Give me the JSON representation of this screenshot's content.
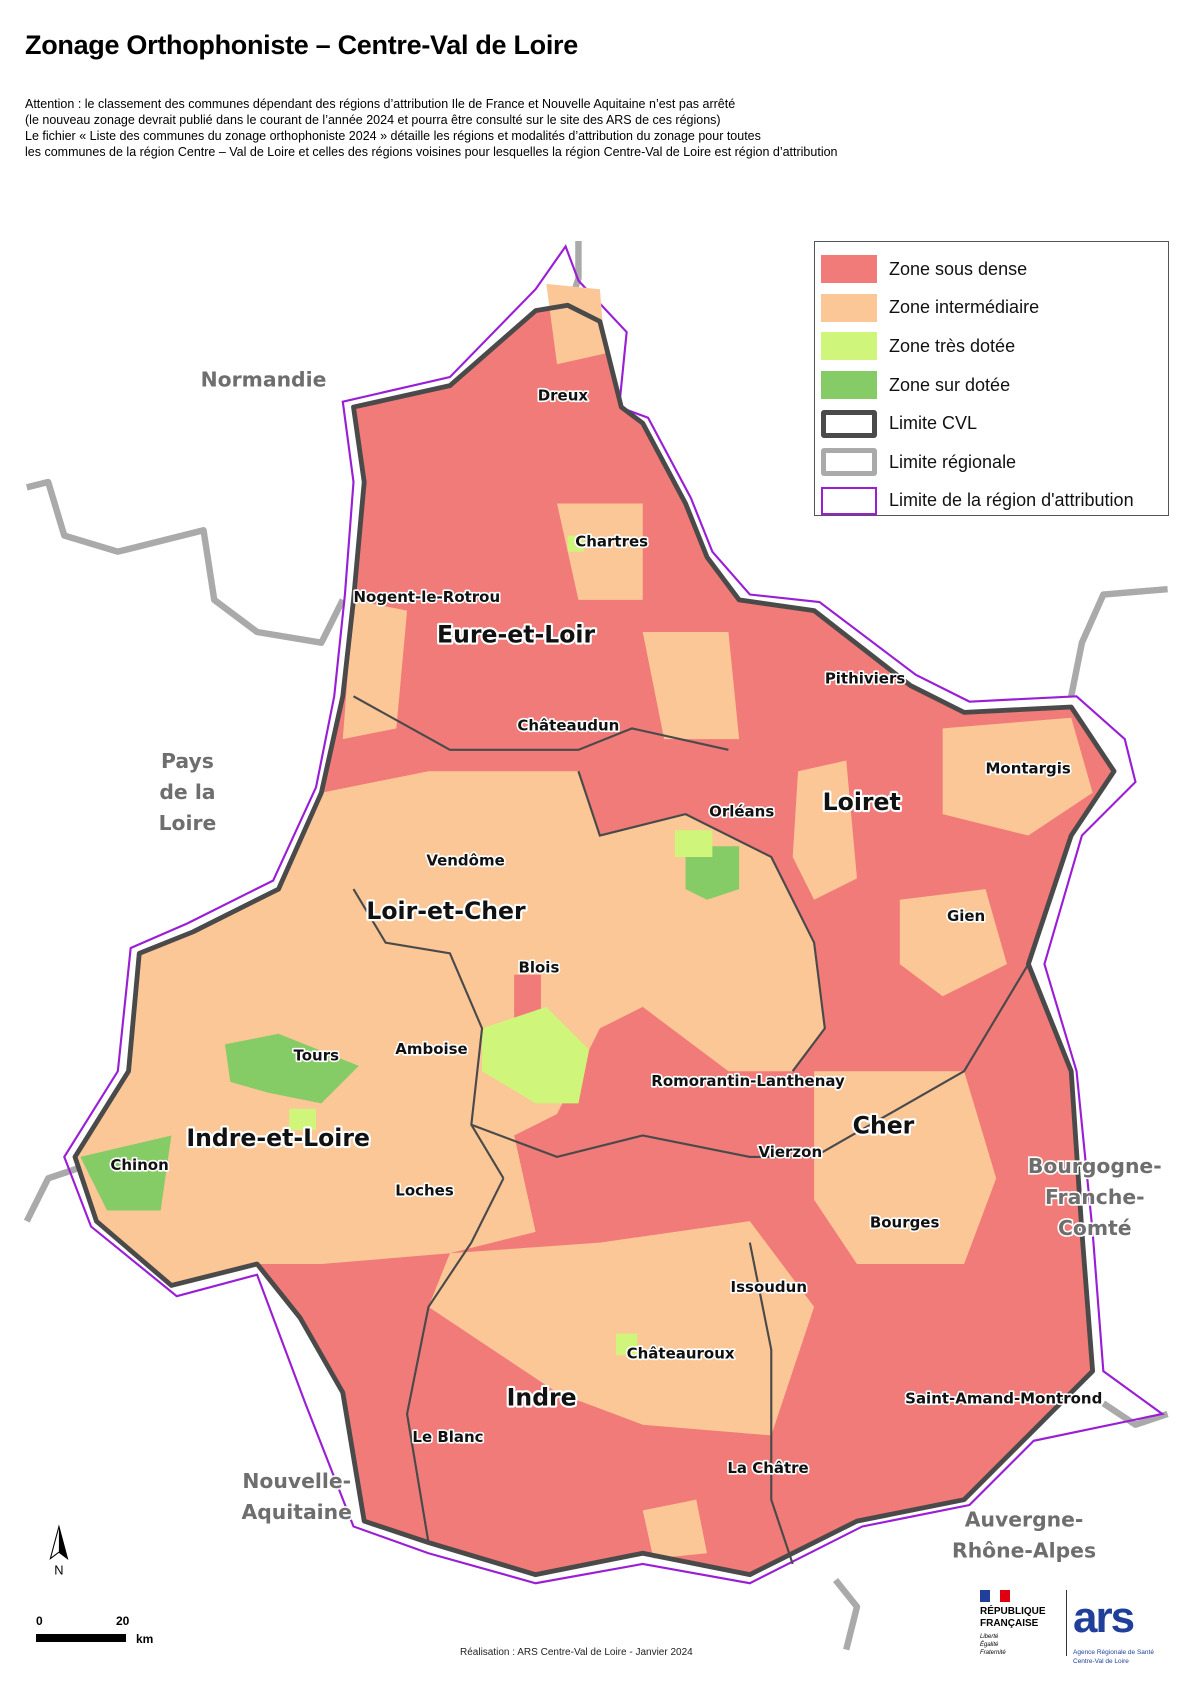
{
  "title": "Zonage Orthophoniste – Centre-Val de Loire",
  "notes": [
    "Attention : le classement des communes dépendant des régions d’attribution Ile de France et Nouvelle Aquitaine n’est pas arrêté",
    "(le nouveau zonage devrait publié dans le courant de l’année 2024 et pourra être consulté sur le site des ARS de ces régions)",
    "Le fichier « Liste des communes du zonage orthophoniste 2024 » détaille les régions et modalités d’attribution du zonage pour toutes",
    "les communes de la région Centre – Val de Loire et celles des régions voisines pour lesquelles la région Centre-Val de Loire est région d’attribution"
  ],
  "legend": [
    {
      "label": "Zone sous dense",
      "color": "#f07b78"
    },
    {
      "label": "Zone intermédiaire",
      "color": "#fcc797"
    },
    {
      "label": "Zone très dotée",
      "color": "#cff57a"
    },
    {
      "label": "Zone sur dotée",
      "color": "#86cc66"
    },
    {
      "label": "Limite CVL",
      "color": "#4a4a4a"
    },
    {
      "label": "Limite régionale",
      "color": "#aaaaaa"
    },
    {
      "label": "Limite de la région d'attribution",
      "color": "#9a1ed6"
    }
  ],
  "departments": [
    "Eure-et-Loir",
    "Loiret",
    "Loir-et-Cher",
    "Indre-et-Loire",
    "Cher",
    "Indre"
  ],
  "cities": [
    "Dreux",
    "Chartres",
    "Nogent-le-Rotrou",
    "Châteaudun",
    "Pithiviers",
    "Montargis",
    "Orléans",
    "Vendôme",
    "Gien",
    "Blois",
    "Tours",
    "Amboise",
    "Romorantin-Lanthenay",
    "Chinon",
    "Vierzon",
    "Loches",
    "Bourges",
    "Issoudun",
    "Châteauroux",
    "Saint-Amand-Montrond",
    "Le Blanc",
    "La Châtre"
  ],
  "regions": {
    "normandie": "Normandie",
    "pdl": [
      "Pays",
      "de la",
      "Loire"
    ],
    "na": [
      "Nouvelle-",
      "Aquitaine"
    ],
    "bfc": [
      "Bourgogne-",
      "Franche-",
      "Comté"
    ],
    "ara": [
      "Auvergne-",
      "Rhône-Alpes"
    ]
  },
  "north_label": "N",
  "scale": {
    "start": "0",
    "end": "20",
    "unit": "km"
  },
  "credit": "Réalisation : ARS Centre-Val de Loire - Janvier 2024",
  "logos": {
    "rf": [
      "RÉPUBLIQUE",
      "FRANÇAISE"
    ],
    "rf_motto": [
      "Liberté",
      "Égalité",
      "Fraternité"
    ],
    "ars": "ars",
    "ars_sub": [
      "Agence Régionale de Santé",
      "Centre-Val de Loire"
    ]
  }
}
